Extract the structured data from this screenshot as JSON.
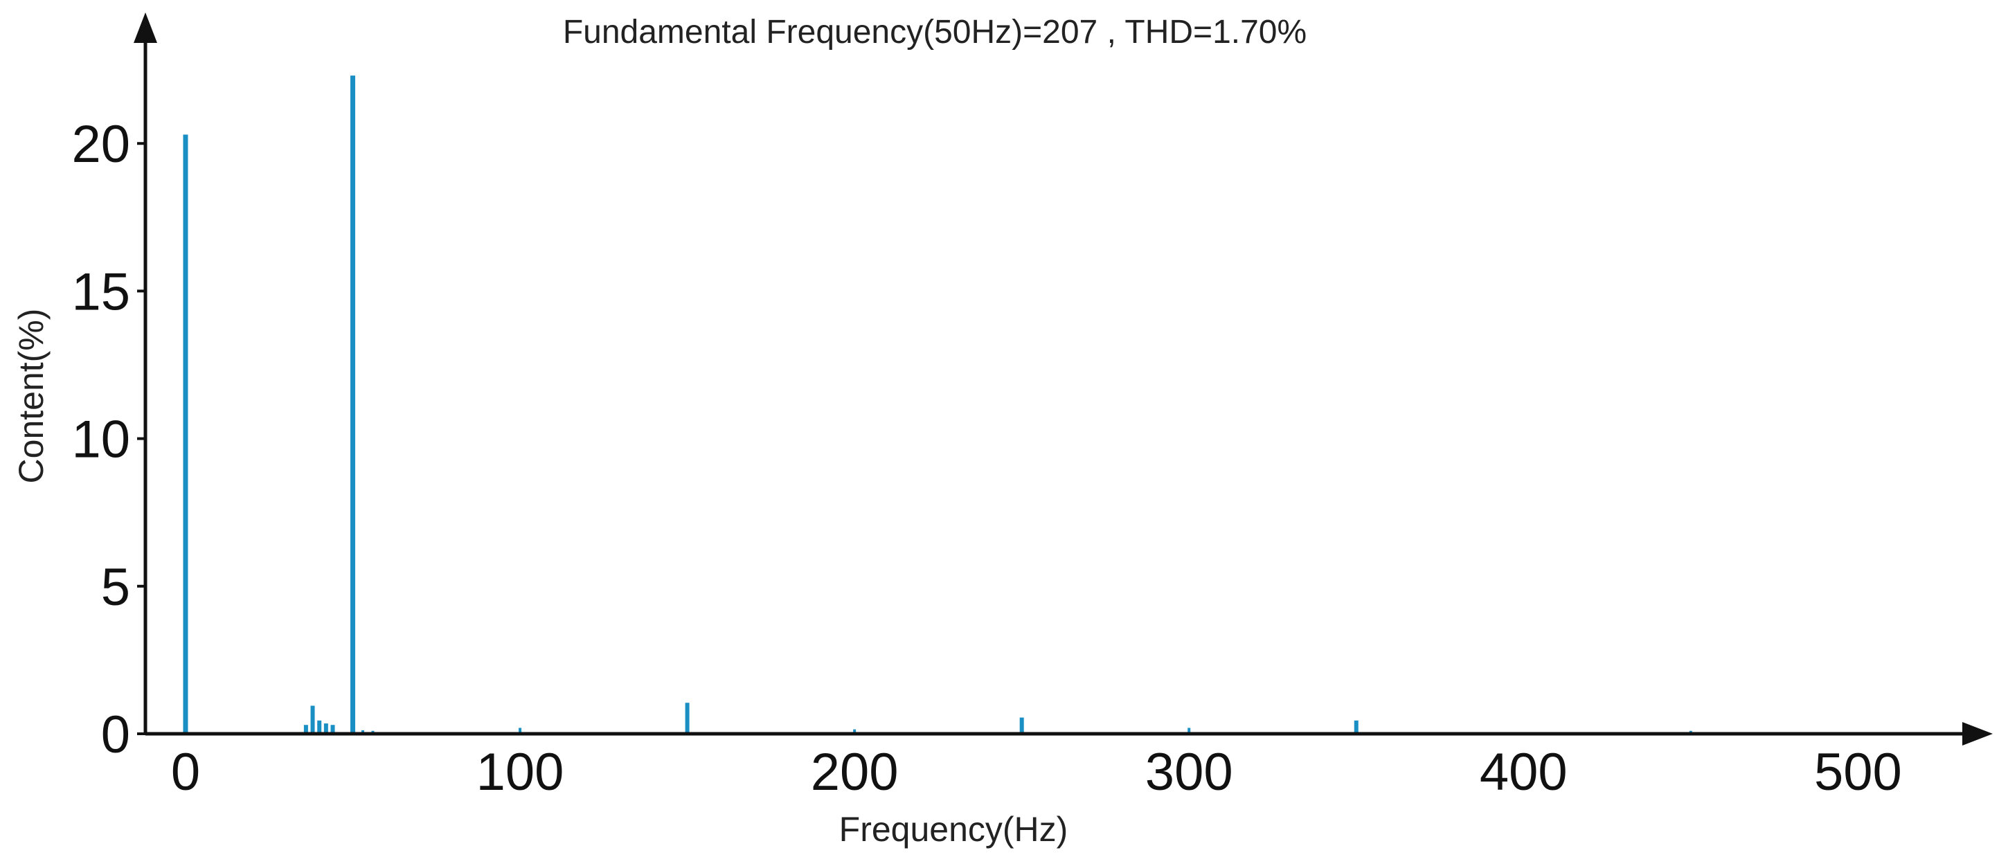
{
  "chart_data": {
    "type": "bar",
    "title": "Fundamental Frequency(50Hz)=207 , THD=1.70%",
    "xlabel": "Frequency(Hz)",
    "ylabel": "Content(%)",
    "xlim": [
      -12,
      520
    ],
    "ylim": [
      0,
      23.5
    ],
    "x_ticks": [
      0,
      100,
      200,
      300,
      400,
      500
    ],
    "y_ticks": [
      0,
      5,
      10,
      15,
      20
    ],
    "grid": false,
    "legend": "none",
    "bar_color": "#1a8fc4",
    "axis_color": "#111111",
    "series": [
      {
        "x": [
          0,
          10,
          20,
          30,
          36,
          38,
          40,
          42,
          44,
          50,
          53,
          56,
          70,
          80,
          90,
          100,
          150,
          200,
          250,
          300,
          350,
          450
        ],
        "values": [
          20.3,
          0.05,
          0.05,
          0.05,
          0.3,
          0.95,
          0.45,
          0.35,
          0.3,
          22.3,
          0.12,
          0.1,
          0.05,
          0.05,
          0.05,
          0.2,
          1.05,
          0.15,
          0.55,
          0.2,
          0.45,
          0.1
        ]
      }
    ]
  }
}
